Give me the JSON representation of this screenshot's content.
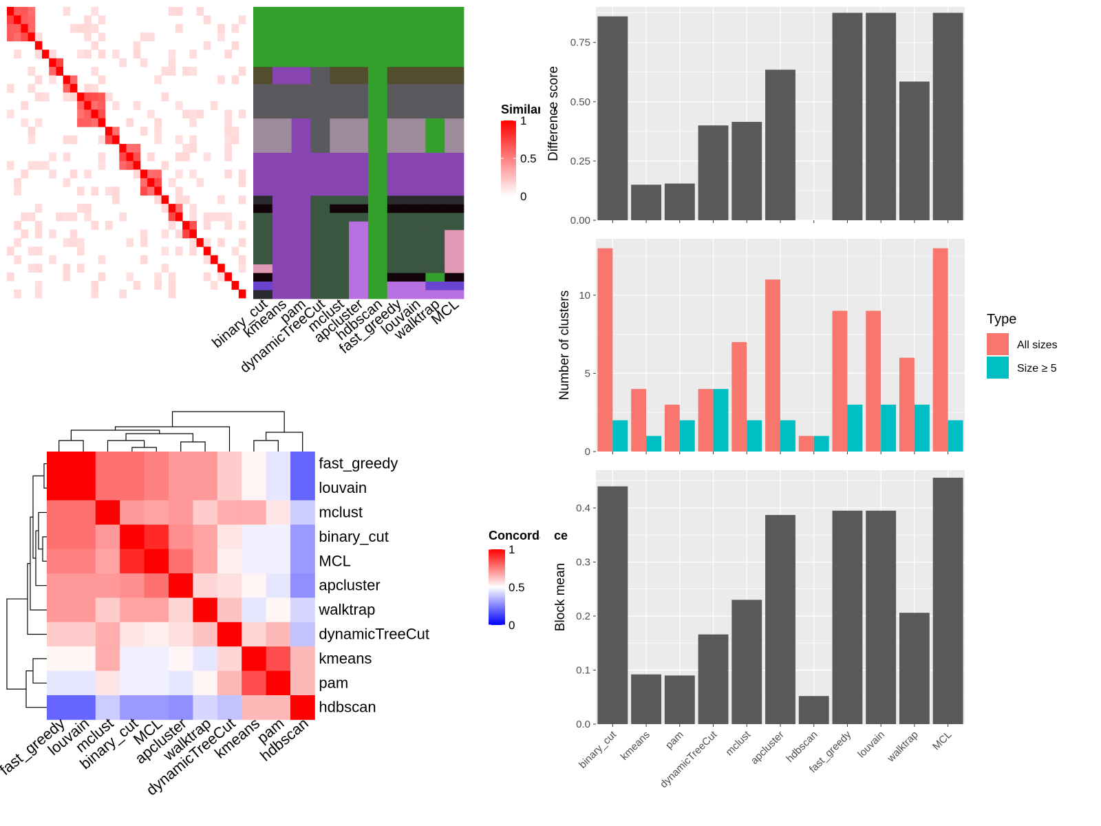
{
  "chart_data": [
    {
      "type": "heatmap",
      "panel": "similarity-heatmap",
      "legend_title": "Similarity",
      "legend_ticks": [
        "0",
        "0.5",
        "1"
      ],
      "colors": {
        "low": "#ffffff",
        "high": "#ff0000"
      },
      "n_items": 34,
      "diagonal_blocks": [
        [
          0,
          4
        ],
        [
          4,
          5
        ],
        [
          5,
          6
        ],
        [
          6,
          8
        ],
        [
          8,
          10
        ],
        [
          10,
          14
        ],
        [
          14,
          16
        ],
        [
          16,
          19
        ],
        [
          19,
          22
        ],
        [
          22,
          23
        ],
        [
          23,
          25
        ],
        [
          25,
          27
        ],
        [
          27,
          28
        ],
        [
          28,
          29
        ],
        [
          29,
          30
        ],
        [
          30,
          31
        ],
        [
          31,
          32
        ],
        [
          32,
          33
        ],
        [
          33,
          34
        ]
      ]
    },
    {
      "type": "heatmap",
      "panel": "cluster-assignment-grid",
      "columns": [
        "binary_cut",
        "kmeans",
        "pam",
        "dynamicTreeCut",
        "mclust",
        "apcluster",
        "hdbscan",
        "fast_greedy",
        "louvain",
        "walktrap",
        "MCL"
      ],
      "row_weights": [
        7,
        2,
        4,
        4,
        5,
        1,
        1,
        1,
        1,
        4,
        1,
        1,
        1,
        1
      ],
      "palette": {
        "A": "#33a02c",
        "B": "#524d2d",
        "C": "#5a5a5e",
        "D": "#9e8a9c",
        "E": "#8844b0",
        "F": "#2a2a2e",
        "G": "#120408",
        "H": "#3a5540",
        "I": "#e09ab5",
        "J": "#b86fe0",
        "K": "#6a44cf"
      },
      "grid": [
        [
          "A",
          "A",
          "A",
          "A",
          "A",
          "A",
          "A",
          "A",
          "A",
          "A",
          "A"
        ],
        [
          "B",
          "E",
          "E",
          "C",
          "B",
          "B",
          "A",
          "B",
          "B",
          "B",
          "B"
        ],
        [
          "C",
          "C",
          "C",
          "C",
          "C",
          "C",
          "A",
          "C",
          "C",
          "C",
          "C"
        ],
        [
          "D",
          "D",
          "E",
          "C",
          "D",
          "D",
          "A",
          "D",
          "D",
          "A",
          "D"
        ],
        [
          "E",
          "E",
          "E",
          "E",
          "E",
          "E",
          "A",
          "E",
          "E",
          "E",
          "E"
        ],
        [
          "F",
          "E",
          "E",
          "H",
          "H",
          "H",
          "A",
          "F",
          "F",
          "F",
          "F"
        ],
        [
          "G",
          "E",
          "E",
          "H",
          "G",
          "G",
          "A",
          "G",
          "G",
          "G",
          "G"
        ],
        [
          "H",
          "E",
          "E",
          "H",
          "H",
          "H",
          "A",
          "H",
          "H",
          "H",
          "H"
        ],
        [
          "H",
          "E",
          "E",
          "H",
          "H",
          "J",
          "A",
          "H",
          "H",
          "H",
          "H"
        ],
        [
          "H",
          "E",
          "E",
          "H",
          "H",
          "J",
          "A",
          "H",
          "H",
          "H",
          "I"
        ],
        [
          "I",
          "E",
          "E",
          "H",
          "H",
          "J",
          "A",
          "H",
          "H",
          "H",
          "I"
        ],
        [
          "G",
          "E",
          "E",
          "H",
          "H",
          "J",
          "A",
          "G",
          "G",
          "A",
          "G"
        ],
        [
          "K",
          "E",
          "E",
          "H",
          "H",
          "J",
          "A",
          "J",
          "J",
          "K",
          "K"
        ],
        [
          "F",
          "E",
          "E",
          "H",
          "H",
          "J",
          "A",
          "J",
          "J",
          "J",
          "J"
        ]
      ]
    },
    {
      "type": "heatmap",
      "panel": "concordance-heatmap",
      "legend_title": "Concordance",
      "legend_ticks": [
        "0",
        "0.5",
        "1"
      ],
      "colors": {
        "low": "#0000ff",
        "mid": "#ffffff",
        "high": "#ff0000"
      },
      "rows": [
        "fast_greedy",
        "louvain",
        "mclust",
        "binary_cut",
        "MCL",
        "apcluster",
        "walktrap",
        "dynamicTreeCut",
        "kmeans",
        "pam",
        "hdbscan"
      ],
      "columns": [
        "fast_greedy",
        "louvain",
        "mclust",
        "binary_cut",
        "MCL",
        "apcluster",
        "walktrap",
        "dynamicTreeCut",
        "kmeans",
        "pam",
        "hdbscan"
      ],
      "values": [
        [
          1.0,
          1.0,
          0.78,
          0.78,
          0.75,
          0.7,
          0.7,
          0.6,
          0.52,
          0.45,
          0.2
        ],
        [
          1.0,
          1.0,
          0.78,
          0.78,
          0.75,
          0.7,
          0.7,
          0.6,
          0.52,
          0.45,
          0.2
        ],
        [
          0.78,
          0.78,
          1.0,
          0.7,
          0.68,
          0.7,
          0.6,
          0.66,
          0.66,
          0.55,
          0.4
        ],
        [
          0.78,
          0.78,
          0.7,
          1.0,
          0.92,
          0.72,
          0.68,
          0.55,
          0.47,
          0.47,
          0.3
        ],
        [
          0.75,
          0.75,
          0.68,
          0.92,
          1.0,
          0.78,
          0.68,
          0.53,
          0.47,
          0.47,
          0.3
        ],
        [
          0.7,
          0.7,
          0.7,
          0.72,
          0.78,
          1.0,
          0.58,
          0.56,
          0.52,
          0.45,
          0.28
        ],
        [
          0.7,
          0.7,
          0.6,
          0.68,
          0.68,
          0.58,
          1.0,
          0.62,
          0.45,
          0.52,
          0.42
        ],
        [
          0.6,
          0.6,
          0.66,
          0.55,
          0.53,
          0.56,
          0.62,
          1.0,
          0.58,
          0.64,
          0.38
        ],
        [
          0.52,
          0.52,
          0.66,
          0.47,
          0.47,
          0.52,
          0.45,
          0.58,
          1.0,
          0.85,
          0.64
        ],
        [
          0.45,
          0.45,
          0.55,
          0.47,
          0.47,
          0.45,
          0.52,
          0.64,
          0.85,
          1.0,
          0.64
        ],
        [
          0.2,
          0.2,
          0.4,
          0.3,
          0.3,
          0.28,
          0.42,
          0.38,
          0.64,
          0.64,
          1.0
        ]
      ]
    },
    {
      "type": "bar",
      "panel": "difference-score",
      "categories": [
        "binary_cut",
        "kmeans",
        "pam",
        "dynamicTreeCut",
        "mclust",
        "apcluster",
        "hdbscan",
        "fast_greedy",
        "louvain",
        "walktrap",
        "MCL"
      ],
      "values": [
        0.86,
        0.15,
        0.155,
        0.4,
        0.415,
        0.635,
        0.0,
        0.875,
        0.875,
        0.585,
        0.875
      ],
      "ylabel": "Difference score",
      "ylim": [
        0,
        0.9
      ],
      "yticks": [
        "0.00",
        "0.25",
        "0.50",
        "0.75"
      ],
      "grid": true
    },
    {
      "type": "bar",
      "panel": "number-of-clusters",
      "categories": [
        "binary_cut",
        "kmeans",
        "pam",
        "dynamicTreeCut",
        "mclust",
        "apcluster",
        "hdbscan",
        "fast_greedy",
        "louvain",
        "walktrap",
        "MCL"
      ],
      "series": [
        {
          "name": "All sizes",
          "color": "#f8766d",
          "values": [
            13,
            4,
            3,
            4,
            7,
            11,
            1,
            9,
            9,
            6,
            13
          ]
        },
        {
          "name": "Size ≥ 5",
          "color": "#00bfc4",
          "values": [
            2,
            1,
            2,
            4,
            2,
            2,
            1,
            3,
            3,
            3,
            2
          ]
        }
      ],
      "ylabel": "Number of clusters",
      "ylim": [
        0,
        13.6
      ],
      "yticks": [
        "0",
        "5",
        "10"
      ],
      "legend_title": "Type",
      "legend_position": "right",
      "grid": true
    },
    {
      "type": "bar",
      "panel": "block-mean",
      "categories": [
        "binary_cut",
        "kmeans",
        "pam",
        "dynamicTreeCut",
        "mclust",
        "apcluster",
        "hdbscan",
        "fast_greedy",
        "louvain",
        "walktrap",
        "MCL"
      ],
      "values": [
        0.44,
        0.092,
        0.09,
        0.166,
        0.23,
        0.387,
        0.052,
        0.395,
        0.395,
        0.206,
        0.456
      ],
      "ylabel": "Block mean",
      "ylim": [
        0,
        0.47
      ],
      "yticks": [
        "0.0",
        "0.1",
        "0.2",
        "0.3",
        "0.4"
      ],
      "grid": true
    }
  ]
}
